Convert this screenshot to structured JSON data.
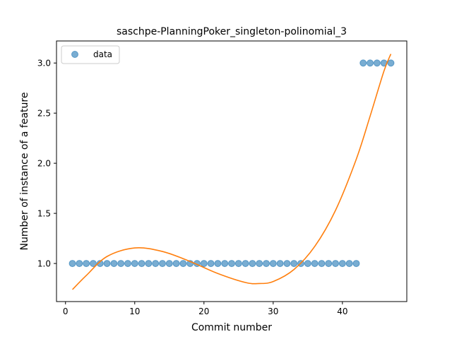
{
  "chart_data": {
    "type": "scatter",
    "title": "saschpe-PlanningPoker_singleton-polinomial_3",
    "xlabel": "Commit number",
    "ylabel": "Number of instance of a feature",
    "xlim": [
      -1.3,
      49.3
    ],
    "ylim": [
      0.62,
      3.22
    ],
    "xticks": [
      0,
      10,
      20,
      30,
      40
    ],
    "yticks": [
      1.0,
      1.5,
      2.0,
      2.5,
      3.0
    ],
    "ytick_labels": [
      "1.0",
      "1.5",
      "2.0",
      "2.5",
      "3.0"
    ],
    "legend_position": "top-left",
    "grid": false,
    "series": [
      {
        "name": "data",
        "kind": "points",
        "color": "#1f77b4",
        "x": [
          1,
          2,
          3,
          4,
          5,
          6,
          7,
          8,
          9,
          10,
          11,
          12,
          13,
          14,
          15,
          16,
          17,
          18,
          19,
          20,
          21,
          22,
          23,
          24,
          25,
          26,
          27,
          28,
          29,
          30,
          31,
          32,
          33,
          34,
          35,
          36,
          37,
          38,
          39,
          40,
          41,
          42,
          43,
          44,
          45,
          46,
          47
        ],
        "y": [
          1,
          1,
          1,
          1,
          1,
          1,
          1,
          1,
          1,
          1,
          1,
          1,
          1,
          1,
          1,
          1,
          1,
          1,
          1,
          1,
          1,
          1,
          1,
          1,
          1,
          1,
          1,
          1,
          1,
          1,
          1,
          1,
          1,
          1,
          1,
          1,
          1,
          1,
          1,
          1,
          1,
          1,
          3,
          3,
          3,
          3,
          3
        ]
      },
      {
        "kind": "fit-curve",
        "color": "#ff7f0e",
        "x": [
          1,
          3,
          6,
          10,
          14,
          18,
          22,
          26,
          28,
          30,
          33,
          36,
          39,
          42,
          44,
          46,
          47
        ],
        "y": [
          0.74,
          0.88,
          1.07,
          1.155,
          1.12,
          1.02,
          0.9,
          0.81,
          0.8,
          0.82,
          0.94,
          1.17,
          1.53,
          2.04,
          2.47,
          2.92,
          3.09
        ]
      }
    ]
  }
}
